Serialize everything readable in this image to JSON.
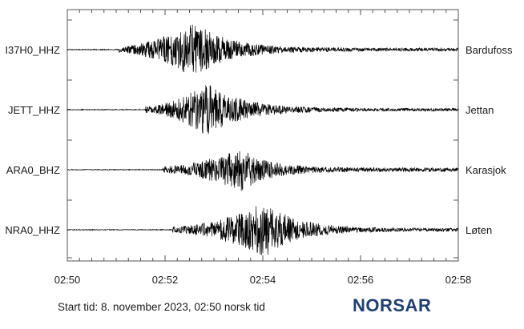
{
  "chart_data": {
    "type": "line",
    "x_ticks": [
      "02:50",
      "02:52",
      "02:54",
      "02:56",
      "02:58"
    ],
    "xlim_minutes": [
      0,
      8
    ],
    "series": [
      {
        "name": "I37H0_HHZ",
        "station": "Bardufoss",
        "onset_min": 1.05,
        "peak_min": 2.6,
        "peak_amp": 1.0,
        "decay": 1.5,
        "coda": 0.06
      },
      {
        "name": "JETT_HHZ",
        "station": "Jettan",
        "onset_min": 1.6,
        "peak_min": 2.85,
        "peak_amp": 0.95,
        "decay": 1.4,
        "coda": 0.05
      },
      {
        "name": "ARA0_BHZ",
        "station": "Karasjok",
        "onset_min": 1.95,
        "peak_min": 3.55,
        "peak_amp": 0.8,
        "decay": 1.8,
        "coda": 0.07
      },
      {
        "name": "NRA0_HHZ",
        "station": "Løten",
        "onset_min": 2.15,
        "peak_min": 4.05,
        "peak_amp": 1.0,
        "decay": 1.6,
        "coda": 0.06
      }
    ],
    "grid": false
  },
  "footer": {
    "start_text": "Start tid:  8. november 2023, 02:50 norsk tid",
    "logo_text": "NORSAR",
    "logo_color": "#1f3f73"
  }
}
